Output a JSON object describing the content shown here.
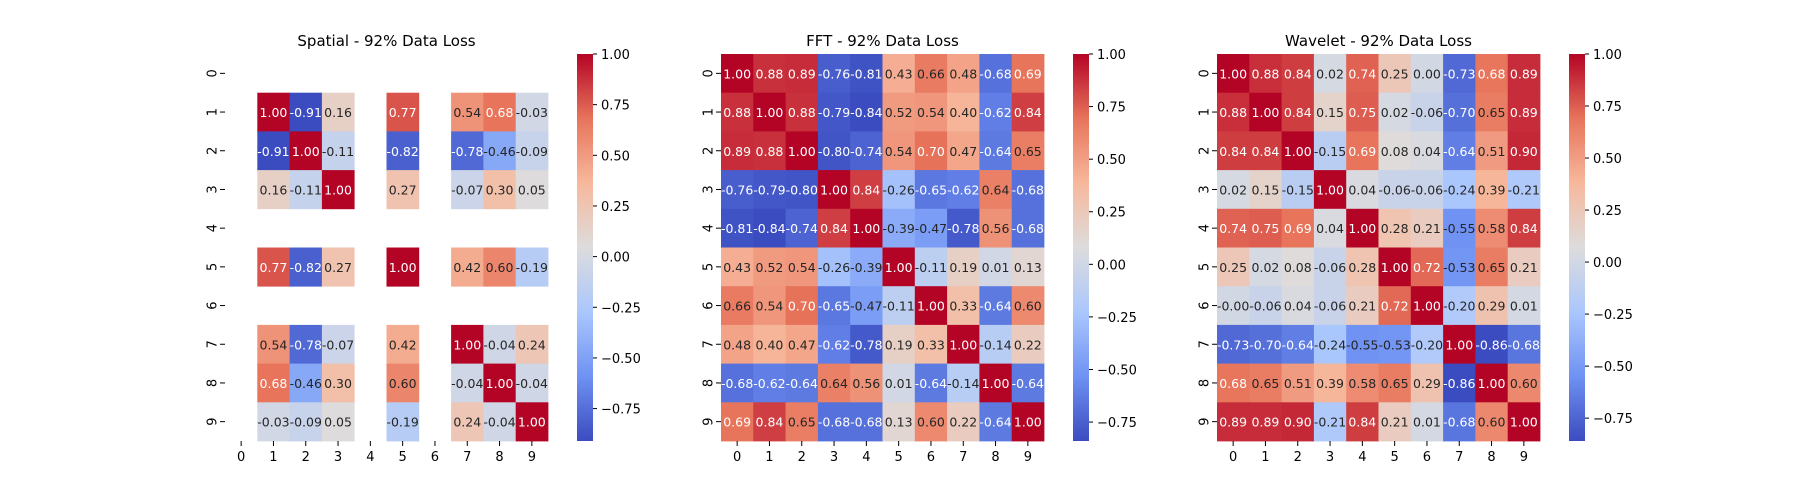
{
  "colormap": {
    "name": "coolwarm",
    "stops": [
      "#3b4cc0",
      "#6f92f3",
      "#aac7fd",
      "#dddcdc",
      "#f7b89c",
      "#e7745b",
      "#b40426"
    ]
  },
  "chart_data": [
    {
      "type": "heatmap",
      "title": "Spatial - 92% Data Loss",
      "x_ticks": [
        "0",
        "1",
        "2",
        "3",
        "4",
        "5",
        "6",
        "7",
        "8",
        "9"
      ],
      "y_ticks": [
        "0",
        "1",
        "2",
        "3",
        "4",
        "5",
        "6",
        "7",
        "8",
        "9"
      ],
      "vmin": -0.91,
      "vmax": 1.0,
      "colorbar_ticks": [
        "1.00",
        "0.75",
        "0.50",
        "0.25",
        "0.00",
        "−0.25",
        "−0.50",
        "−0.75"
      ],
      "colorbar_values": [
        1.0,
        0.75,
        0.5,
        0.25,
        0.0,
        -0.25,
        -0.5,
        -0.75
      ],
      "show_xtick_labels": true,
      "values": [
        [
          null,
          null,
          null,
          null,
          null,
          null,
          null,
          null,
          null,
          null
        ],
        [
          null,
          1.0,
          -0.91,
          0.16,
          null,
          0.77,
          null,
          0.54,
          0.68,
          -0.03
        ],
        [
          null,
          -0.91,
          1.0,
          -0.11,
          null,
          -0.82,
          null,
          -0.78,
          -0.46,
          -0.09
        ],
        [
          null,
          0.16,
          -0.11,
          1.0,
          null,
          0.27,
          null,
          -0.07,
          0.3,
          0.05
        ],
        [
          null,
          null,
          null,
          null,
          null,
          null,
          null,
          null,
          null,
          null
        ],
        [
          null,
          0.77,
          -0.82,
          0.27,
          null,
          1.0,
          null,
          0.42,
          0.6,
          -0.19
        ],
        [
          null,
          null,
          null,
          null,
          null,
          null,
          null,
          null,
          null,
          null
        ],
        [
          null,
          0.54,
          -0.78,
          -0.07,
          null,
          0.42,
          null,
          1.0,
          -0.04,
          0.24
        ],
        [
          null,
          0.68,
          -0.46,
          0.3,
          null,
          0.6,
          null,
          -0.04,
          1.0,
          -0.04
        ],
        [
          null,
          -0.03,
          -0.09,
          0.05,
          null,
          -0.19,
          null,
          0.24,
          -0.04,
          1.0
        ]
      ],
      "labels": [
        [
          "",
          "",
          "",
          "",
          "",
          "",
          "",
          "",
          "",
          ""
        ],
        [
          "",
          "1.00",
          "-0.91",
          "0.16",
          "",
          "0.77",
          "",
          "0.54",
          "0.68",
          "-0.03"
        ],
        [
          "",
          "-0.91",
          "1.00",
          "-0.11",
          "",
          "-0.82",
          "",
          "-0.78",
          "-0.46",
          "-0.09"
        ],
        [
          "",
          "0.16",
          "-0.11",
          "1.00",
          "",
          "0.27",
          "",
          "-0.07",
          "0.30",
          "0.05"
        ],
        [
          "",
          "",
          "",
          "",
          "",
          "",
          "",
          "",
          "",
          ""
        ],
        [
          "",
          "0.77",
          "-0.82",
          "0.27",
          "",
          "1.00",
          "",
          "0.42",
          "0.60",
          "-0.19"
        ],
        [
          "",
          "",
          "",
          "",
          "",
          "",
          "",
          "",
          "",
          ""
        ],
        [
          "",
          "0.54",
          "-0.78",
          "-0.07",
          "",
          "0.42",
          "",
          "1.00",
          "-0.04",
          "0.24"
        ],
        [
          "",
          "0.68",
          "-0.46",
          "0.30",
          "",
          "0.60",
          "",
          "-0.04",
          "1.00",
          "-0.04"
        ],
        [
          "",
          "-0.03",
          "-0.09",
          "0.05",
          "",
          "-0.19",
          "",
          "0.24",
          "-0.04",
          "1.00"
        ]
      ]
    },
    {
      "type": "heatmap",
      "title": "FFT - 92% Data Loss",
      "x_ticks": [
        "0",
        "1",
        "2",
        "3",
        "4",
        "5",
        "6",
        "7",
        "8",
        "9"
      ],
      "y_ticks": [
        "0",
        "1",
        "2",
        "3",
        "4",
        "5",
        "6",
        "7",
        "8",
        "9"
      ],
      "vmin": -0.84,
      "vmax": 1.0,
      "colorbar_ticks": [
        "1.00",
        "0.75",
        "0.50",
        "0.25",
        "0.00",
        "−0.25",
        "−0.50",
        "−0.75"
      ],
      "colorbar_values": [
        1.0,
        0.75,
        0.5,
        0.25,
        0.0,
        -0.25,
        -0.5,
        -0.75
      ],
      "show_xtick_labels": true,
      "values": [
        [
          1.0,
          0.88,
          0.89,
          -0.76,
          -0.81,
          0.43,
          0.66,
          0.48,
          -0.68,
          0.69
        ],
        [
          0.88,
          1.0,
          0.88,
          -0.79,
          -0.84,
          0.52,
          0.54,
          0.4,
          -0.62,
          0.84
        ],
        [
          0.89,
          0.88,
          1.0,
          -0.8,
          -0.74,
          0.54,
          0.7,
          0.47,
          -0.64,
          0.65
        ],
        [
          -0.76,
          -0.79,
          -0.8,
          1.0,
          0.84,
          -0.26,
          -0.65,
          -0.62,
          0.64,
          -0.68
        ],
        [
          -0.81,
          -0.84,
          -0.74,
          0.84,
          1.0,
          -0.39,
          -0.47,
          -0.78,
          0.56,
          -0.68
        ],
        [
          0.43,
          0.52,
          0.54,
          -0.26,
          -0.39,
          1.0,
          -0.11,
          0.19,
          0.01,
          0.13
        ],
        [
          0.66,
          0.54,
          0.7,
          -0.65,
          -0.47,
          -0.11,
          1.0,
          0.33,
          -0.64,
          0.6
        ],
        [
          0.48,
          0.4,
          0.47,
          -0.62,
          -0.78,
          0.19,
          0.33,
          1.0,
          -0.14,
          0.22
        ],
        [
          -0.68,
          -0.62,
          -0.64,
          0.64,
          0.56,
          0.01,
          -0.64,
          -0.14,
          1.0,
          -0.64
        ],
        [
          0.69,
          0.84,
          0.65,
          -0.68,
          -0.68,
          0.13,
          0.6,
          0.22,
          -0.64,
          1.0
        ]
      ],
      "labels": [
        [
          "1.00",
          "0.88",
          "0.89",
          "-0.76",
          "-0.81",
          "0.43",
          "0.66",
          "0.48",
          "-0.68",
          "0.69"
        ],
        [
          "0.88",
          "1.00",
          "0.88",
          "-0.79",
          "-0.84",
          "0.52",
          "0.54",
          "0.40",
          "-0.62",
          "0.84"
        ],
        [
          "0.89",
          "0.88",
          "1.00",
          "-0.80",
          "-0.74",
          "0.54",
          "0.70",
          "0.47",
          "-0.64",
          "0.65"
        ],
        [
          "-0.76",
          "-0.79",
          "-0.80",
          "1.00",
          "0.84",
          "-0.26",
          "-0.65",
          "-0.62",
          "0.64",
          "-0.68"
        ],
        [
          "-0.81",
          "-0.84",
          "-0.74",
          "0.84",
          "1.00",
          "-0.39",
          "-0.47",
          "-0.78",
          "0.56",
          "-0.68"
        ],
        [
          "0.43",
          "0.52",
          "0.54",
          "-0.26",
          "-0.39",
          "1.00",
          "-0.11",
          "0.19",
          "0.01",
          "0.13"
        ],
        [
          "0.66",
          "0.54",
          "0.70",
          "-0.65",
          "-0.47",
          "-0.11",
          "1.00",
          "0.33",
          "-0.64",
          "0.60"
        ],
        [
          "0.48",
          "0.40",
          "0.47",
          "-0.62",
          "-0.78",
          "0.19",
          "0.33",
          "1.00",
          "-0.14",
          "0.22"
        ],
        [
          "-0.68",
          "-0.62",
          "-0.64",
          "0.64",
          "0.56",
          "0.01",
          "-0.64",
          "-0.14",
          "1.00",
          "-0.64"
        ],
        [
          "0.69",
          "0.84",
          "0.65",
          "-0.68",
          "-0.68",
          "0.13",
          "0.60",
          "0.22",
          "-0.64",
          "1.00"
        ]
      ]
    },
    {
      "type": "heatmap",
      "title": "Wavelet - 92% Data Loss",
      "x_ticks": [
        "0",
        "1",
        "2",
        "3",
        "4",
        "5",
        "6",
        "7",
        "8",
        "9"
      ],
      "y_ticks": [
        "0",
        "1",
        "2",
        "3",
        "4",
        "5",
        "6",
        "7",
        "8",
        "9"
      ],
      "vmin": -0.86,
      "vmax": 1.0,
      "colorbar_ticks": [
        "1.00",
        "0.75",
        "0.50",
        "0.25",
        "0.00",
        "−0.25",
        "−0.50",
        "−0.75"
      ],
      "colorbar_values": [
        1.0,
        0.75,
        0.5,
        0.25,
        0.0,
        -0.25,
        -0.5,
        -0.75
      ],
      "show_xtick_labels": true,
      "values": [
        [
          1.0,
          0.88,
          0.84,
          0.02,
          0.74,
          0.25,
          0.0,
          -0.73,
          0.68,
          0.89
        ],
        [
          0.88,
          1.0,
          0.84,
          0.15,
          0.75,
          0.02,
          -0.06,
          -0.7,
          0.65,
          0.89
        ],
        [
          0.84,
          0.84,
          1.0,
          -0.15,
          0.69,
          0.08,
          0.04,
          -0.64,
          0.51,
          0.9
        ],
        [
          0.02,
          0.15,
          -0.15,
          1.0,
          0.04,
          -0.06,
          -0.06,
          -0.24,
          0.39,
          -0.21
        ],
        [
          0.74,
          0.75,
          0.69,
          0.04,
          1.0,
          0.28,
          0.21,
          -0.55,
          0.58,
          0.84
        ],
        [
          0.25,
          0.02,
          0.08,
          -0.06,
          0.28,
          1.0,
          0.72,
          -0.53,
          0.65,
          0.21
        ],
        [
          0.0,
          -0.06,
          0.04,
          -0.06,
          0.21,
          0.72,
          1.0,
          -0.2,
          0.29,
          0.01
        ],
        [
          -0.73,
          -0.7,
          -0.64,
          -0.24,
          -0.55,
          -0.53,
          -0.2,
          1.0,
          -0.86,
          -0.68
        ],
        [
          0.68,
          0.65,
          0.51,
          0.39,
          0.58,
          0.65,
          0.29,
          -0.86,
          1.0,
          0.6
        ],
        [
          0.89,
          0.89,
          0.9,
          -0.21,
          0.84,
          0.21,
          0.01,
          -0.68,
          0.6,
          1.0
        ]
      ],
      "labels": [
        [
          "1.00",
          "0.88",
          "0.84",
          "0.02",
          "0.74",
          "0.25",
          "0.00",
          "-0.73",
          "0.68",
          "0.89"
        ],
        [
          "0.88",
          "1.00",
          "0.84",
          "0.15",
          "0.75",
          "0.02",
          "-0.06",
          "-0.70",
          "0.65",
          "0.89"
        ],
        [
          "0.84",
          "0.84",
          "1.00",
          "-0.15",
          "0.69",
          "0.08",
          "0.04",
          "-0.64",
          "0.51",
          "0.90"
        ],
        [
          "0.02",
          "0.15",
          "-0.15",
          "1.00",
          "0.04",
          "-0.06",
          "-0.06",
          "-0.24",
          "0.39",
          "-0.21"
        ],
        [
          "0.74",
          "0.75",
          "0.69",
          "0.04",
          "1.00",
          "0.28",
          "0.21",
          "-0.55",
          "0.58",
          "0.84"
        ],
        [
          "0.25",
          "0.02",
          "0.08",
          "-0.06",
          "0.28",
          "1.00",
          "0.72",
          "-0.53",
          "0.65",
          "0.21"
        ],
        [
          "-0.00",
          "-0.06",
          "0.04",
          "-0.06",
          "0.21",
          "0.72",
          "1.00",
          "-0.20",
          "0.29",
          "0.01"
        ],
        [
          "-0.73",
          "-0.70",
          "-0.64",
          "-0.24",
          "-0.55",
          "-0.53",
          "-0.20",
          "1.00",
          "-0.86",
          "-0.68"
        ],
        [
          "0.68",
          "0.65",
          "0.51",
          "0.39",
          "0.58",
          "0.65",
          "0.29",
          "-0.86",
          "1.00",
          "0.60"
        ],
        [
          "0.89",
          "0.89",
          "0.90",
          "-0.21",
          "0.84",
          "0.21",
          "0.01",
          "-0.68",
          "0.60",
          "1.00"
        ]
      ]
    }
  ]
}
